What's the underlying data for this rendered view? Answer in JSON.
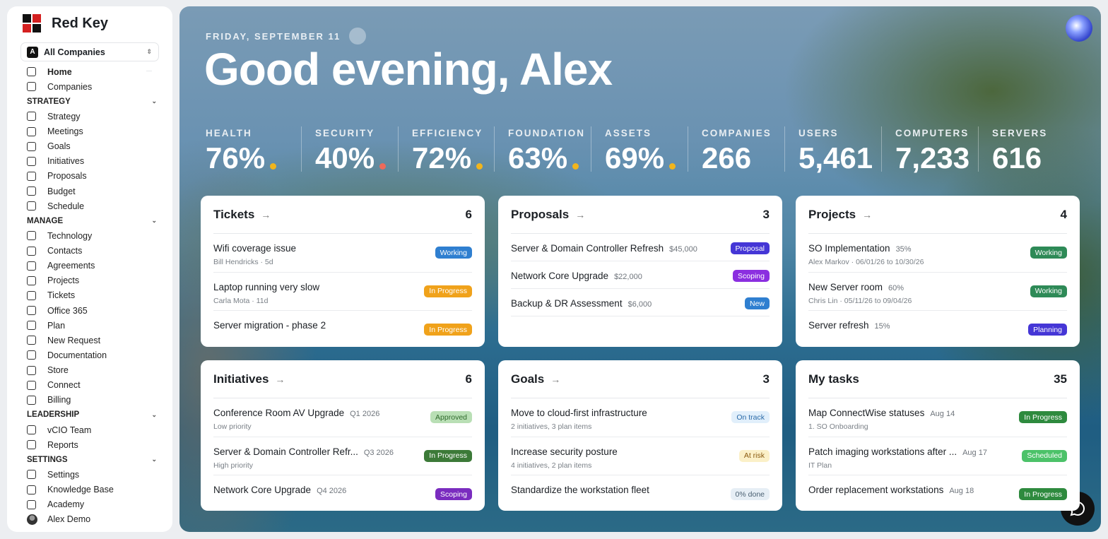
{
  "sidebar": {
    "brand": "Red Key",
    "company_selector": {
      "badge": "A",
      "label": "All Companies"
    },
    "nav_top": [
      "Home",
      "Companies"
    ],
    "sections": [
      {
        "title": "STRATEGY",
        "items": [
          "Strategy",
          "Meetings",
          "Goals",
          "Initiatives",
          "Proposals",
          "Budget",
          "Schedule"
        ]
      },
      {
        "title": "MANAGE",
        "items": [
          "Technology",
          "Contacts",
          "Agreements",
          "Projects",
          "Tickets",
          "Office 365",
          "Plan",
          "New Request",
          "Documentation",
          "Store",
          "Connect",
          "Billing"
        ]
      },
      {
        "title": "LEADERSHIP",
        "items": [
          "vCIO Team",
          "Reports"
        ]
      },
      {
        "title": "SETTINGS",
        "items": [
          "Settings",
          "Knowledge Base",
          "Academy"
        ]
      }
    ],
    "user": "Alex Demo"
  },
  "header": {
    "date": "FRIDAY, SEPTEMBER 11",
    "greeting": "Good evening, Alex"
  },
  "stats": [
    {
      "label": "HEALTH",
      "value": "76%",
      "status_color": "#f2b51c"
    },
    {
      "label": "SECURITY",
      "value": "40%",
      "status_color": "#ee6a5a"
    },
    {
      "label": "EFFICIENCY",
      "value": "72%",
      "status_color": "#f2b51c"
    },
    {
      "label": "FOUNDATION",
      "value": "63%",
      "status_color": "#f2b51c"
    },
    {
      "label": "ASSETS",
      "value": "69%",
      "status_color": "#f2b51c"
    },
    {
      "label": "COMPANIES",
      "value": "266"
    },
    {
      "label": "USERS",
      "value": "5,461"
    },
    {
      "label": "COMPUTERS",
      "value": "7,233"
    },
    {
      "label": "SERVERS",
      "value": "616"
    }
  ],
  "cards": [
    {
      "title": "Tickets",
      "count": "6",
      "link": true,
      "items": [
        {
          "title": "Wifi coverage issue",
          "meta": "Bill Hendricks · 5d",
          "status": "Working",
          "status_bg": "#2f7fd0",
          "status_fg": "#ffffff"
        },
        {
          "title": "Laptop running very slow",
          "meta": "Carla Mota · 11d",
          "status": "In Progress",
          "status_bg": "#f0a21b",
          "status_fg": "#ffffff"
        },
        {
          "title": "Server migration - phase 2",
          "status": "In Progress",
          "status_bg": "#f0a21b",
          "status_fg": "#ffffff"
        }
      ]
    },
    {
      "title": "Proposals",
      "count": "3",
      "link": true,
      "compact": true,
      "items": [
        {
          "title": "Server & Domain Controller Refresh",
          "detail": "$45,000",
          "status": "Proposal",
          "status_bg": "#4536d6",
          "status_fg": "#ffffff"
        },
        {
          "title": "Network Core Upgrade",
          "detail": "$22,000",
          "status": "Scoping",
          "status_bg": "#8b2fe0",
          "status_fg": "#ffffff"
        },
        {
          "title": "Backup & DR Assessment",
          "detail": "$6,000",
          "status": "New",
          "status_bg": "#2f7fd0",
          "status_fg": "#ffffff"
        }
      ]
    },
    {
      "title": "Projects",
      "count": "4",
      "link": true,
      "items": [
        {
          "title": "SO Implementation",
          "detail": "35%",
          "meta": "Alex Markov · 06/01/26 to 10/30/26",
          "status": "Working",
          "status_bg": "#2e8a57",
          "status_fg": "#ffffff"
        },
        {
          "title": "New Server room",
          "detail": "60%",
          "meta": "Chris Lin · 05/11/26 to 09/04/26",
          "status": "Working",
          "status_bg": "#2e8a57",
          "status_fg": "#ffffff"
        },
        {
          "title": "Server refresh",
          "detail": "15%",
          "status": "Planning",
          "status_bg": "#4536d6",
          "status_fg": "#ffffff"
        }
      ]
    },
    {
      "title": "Initiatives",
      "count": "6",
      "link": true,
      "items": [
        {
          "title": "Conference Room AV Upgrade",
          "detail": "Q1 2026",
          "meta": "Low priority",
          "status": "Approved",
          "status_bg": "#b9dfb5",
          "status_fg": "#2f6a2c"
        },
        {
          "title": "Server & Domain Controller Refr...",
          "detail": "Q3 2026",
          "meta": "High priority",
          "status": "In Progress",
          "status_bg": "#3c7a38",
          "status_fg": "#ffffff"
        },
        {
          "title": "Network Core Upgrade",
          "detail": "Q4 2026",
          "status": "Scoping",
          "status_bg": "#7a2cbf",
          "status_fg": "#ffffff"
        }
      ]
    },
    {
      "title": "Goals",
      "count": "3",
      "link": true,
      "items": [
        {
          "title": "Move to cloud-first infrastructure",
          "meta": "2 initiatives, 3 plan items",
          "status": "On track",
          "status_bg": "#e1effb",
          "status_fg": "#2a6aa8"
        },
        {
          "title": "Increase security posture",
          "meta": "4 initiatives, 2 plan items",
          "status": "At risk",
          "status_bg": "#fbf0c8",
          "status_fg": "#8a5a10"
        },
        {
          "title": "Standardize the workstation fleet",
          "status": "0% done",
          "status_bg": "#e6eef5",
          "status_fg": "#4a6072"
        }
      ]
    },
    {
      "title": "My tasks",
      "count": "35",
      "link": false,
      "items": [
        {
          "title": "Map ConnectWise statuses",
          "detail": "Aug 14",
          "meta": "1. SO Onboarding",
          "status": "In Progress",
          "status_bg": "#2e8a3e",
          "status_fg": "#ffffff"
        },
        {
          "title": "Patch imaging workstations after ...",
          "detail": "Aug 17",
          "meta": "IT Plan",
          "status": "Scheduled",
          "status_bg": "#4cc269",
          "status_fg": "#ffffff"
        },
        {
          "title": "Order replacement workstations",
          "detail": "Aug 18",
          "status": "In Progress",
          "status_bg": "#2e8a3e",
          "status_fg": "#ffffff"
        }
      ]
    }
  ]
}
